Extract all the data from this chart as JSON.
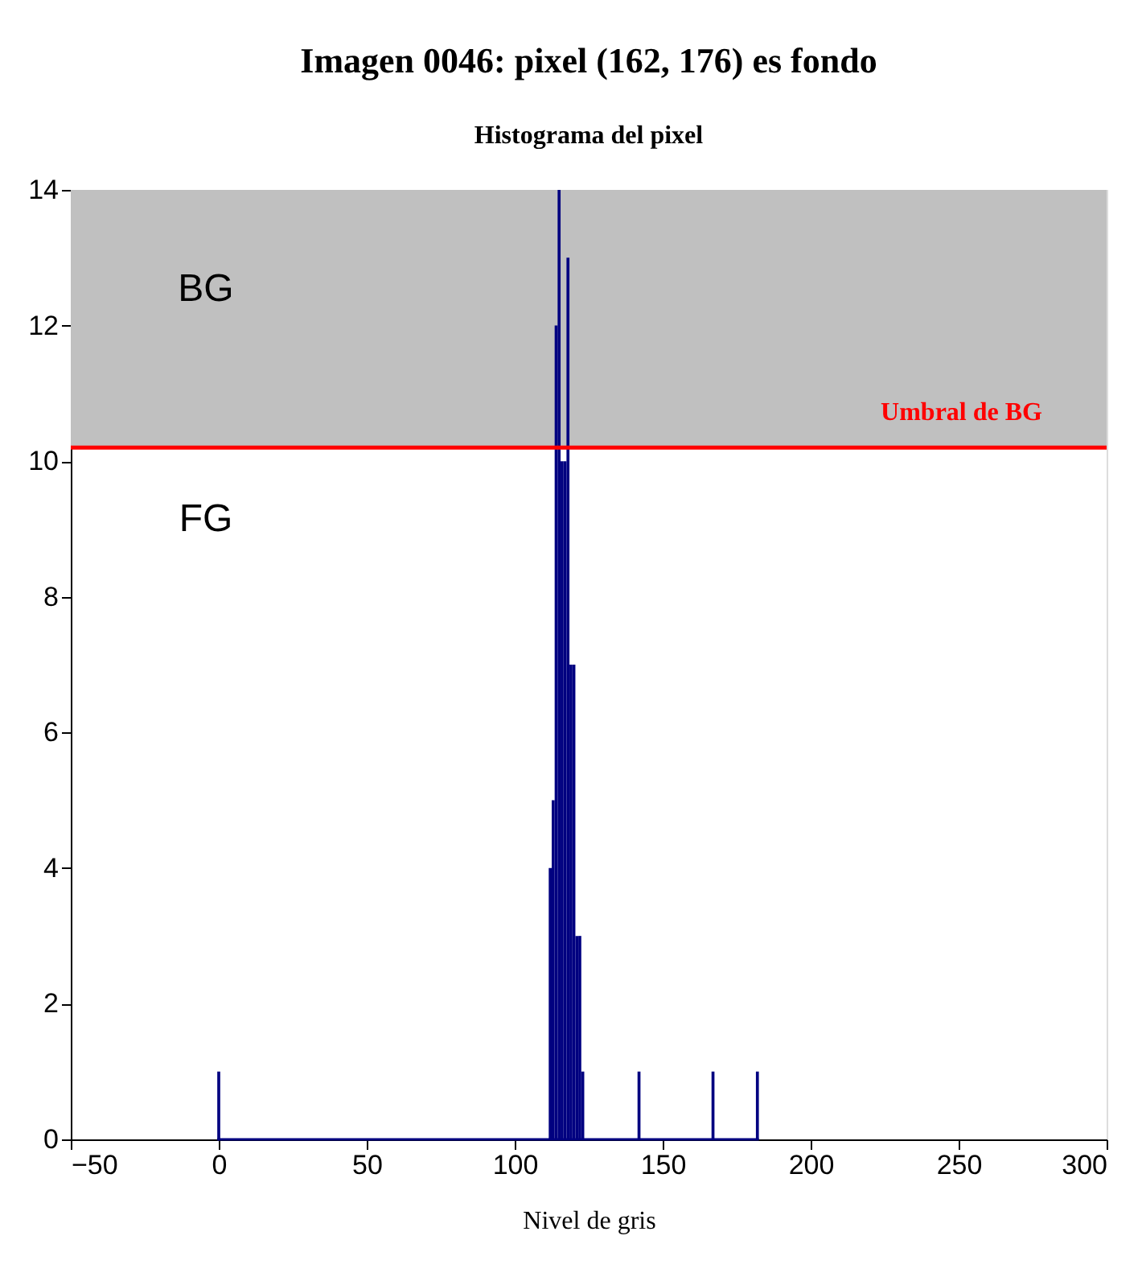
{
  "chart_data": {
    "type": "histogram",
    "title": "Imagen 0046: pixel (162, 176) es fondo",
    "subtitle": "Histograma del pixel",
    "xlabel": "Nivel de gris",
    "bins": [
      -0.5,
      0.5,
      111.5,
      112.5,
      113.5,
      114.5,
      115.5,
      116.5,
      117.5,
      118.5,
      119.5,
      120.5,
      121.5,
      122.5,
      123.5,
      141.5,
      142.5,
      166.5,
      167.5,
      181.5,
      182.5
    ],
    "values": [
      1,
      0,
      4,
      5,
      12,
      14,
      10,
      10,
      13,
      7,
      7,
      3,
      3,
      1,
      0,
      1,
      0,
      1,
      0,
      1
    ],
    "color": "#000080",
    "xlim": [
      -50,
      300
    ],
    "xticks": [
      -50,
      0,
      50,
      100,
      150,
      200,
      250,
      300
    ],
    "ylim": [
      0,
      14
    ],
    "yticks": [
      0,
      2,
      4,
      6,
      8,
      10,
      12,
      14
    ],
    "bands": [
      {
        "axis": "y",
        "from": 10.2,
        "to": 14,
        "color": "#c0c0c0"
      }
    ],
    "ref_lines": [
      {
        "axis": "y",
        "value": 10.2,
        "label": "Umbral de BG",
        "color": "#ff0000",
        "line_style": "solid"
      }
    ],
    "annotations": [
      "BG",
      "FG"
    ],
    "grid": false
  }
}
